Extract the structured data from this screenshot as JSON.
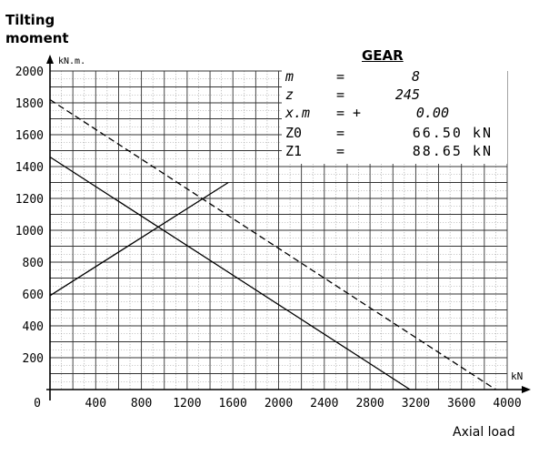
{
  "chart_data": {
    "type": "line",
    "ylabel": "Tilting moment",
    "yunit": "kN.m.",
    "xlabel": "Axial load",
    "xunit": "kN",
    "xlim": [
      0,
      4000
    ],
    "ylim": [
      0,
      2000
    ],
    "x_ticks": [
      0,
      400,
      800,
      1200,
      1600,
      2000,
      2400,
      2800,
      3200,
      3600,
      4000
    ],
    "x_tick_labels": [
      "0",
      "400",
      "800",
      "1200",
      "1600",
      "2000",
      "2400",
      "2800",
      "3200",
      "3600",
      "4000"
    ],
    "y_ticks": [
      200,
      400,
      600,
      800,
      1000,
      1200,
      1400,
      1600,
      1800,
      2000
    ],
    "y_tick_labels": [
      "200",
      "400",
      "600",
      "800",
      "1000",
      "1200",
      "1400",
      "1600",
      "1800",
      "2000"
    ],
    "grid": true,
    "series": [
      {
        "style": "dashed",
        "x": [
          0,
          3900
        ],
        "y": [
          1820,
          0
        ]
      },
      {
        "style": "solid",
        "x": [
          0,
          3150
        ],
        "y": [
          1460,
          0
        ]
      },
      {
        "style": "solid",
        "x": [
          0,
          1560
        ],
        "y": [
          590,
          1300
        ]
      }
    ]
  },
  "gear": {
    "title": "GEAR",
    "rows": [
      {
        "name": "m",
        "op": "=",
        "value": "8"
      },
      {
        "name": "z",
        "op": "=",
        "value": "245"
      },
      {
        "name": "x.m",
        "op": "= +",
        "value": "0.00"
      },
      {
        "name": "Z0",
        "op": "=",
        "value": "66.50 kN"
      },
      {
        "name": "Z1",
        "op": "=",
        "value": "88.65 kN"
      }
    ]
  }
}
